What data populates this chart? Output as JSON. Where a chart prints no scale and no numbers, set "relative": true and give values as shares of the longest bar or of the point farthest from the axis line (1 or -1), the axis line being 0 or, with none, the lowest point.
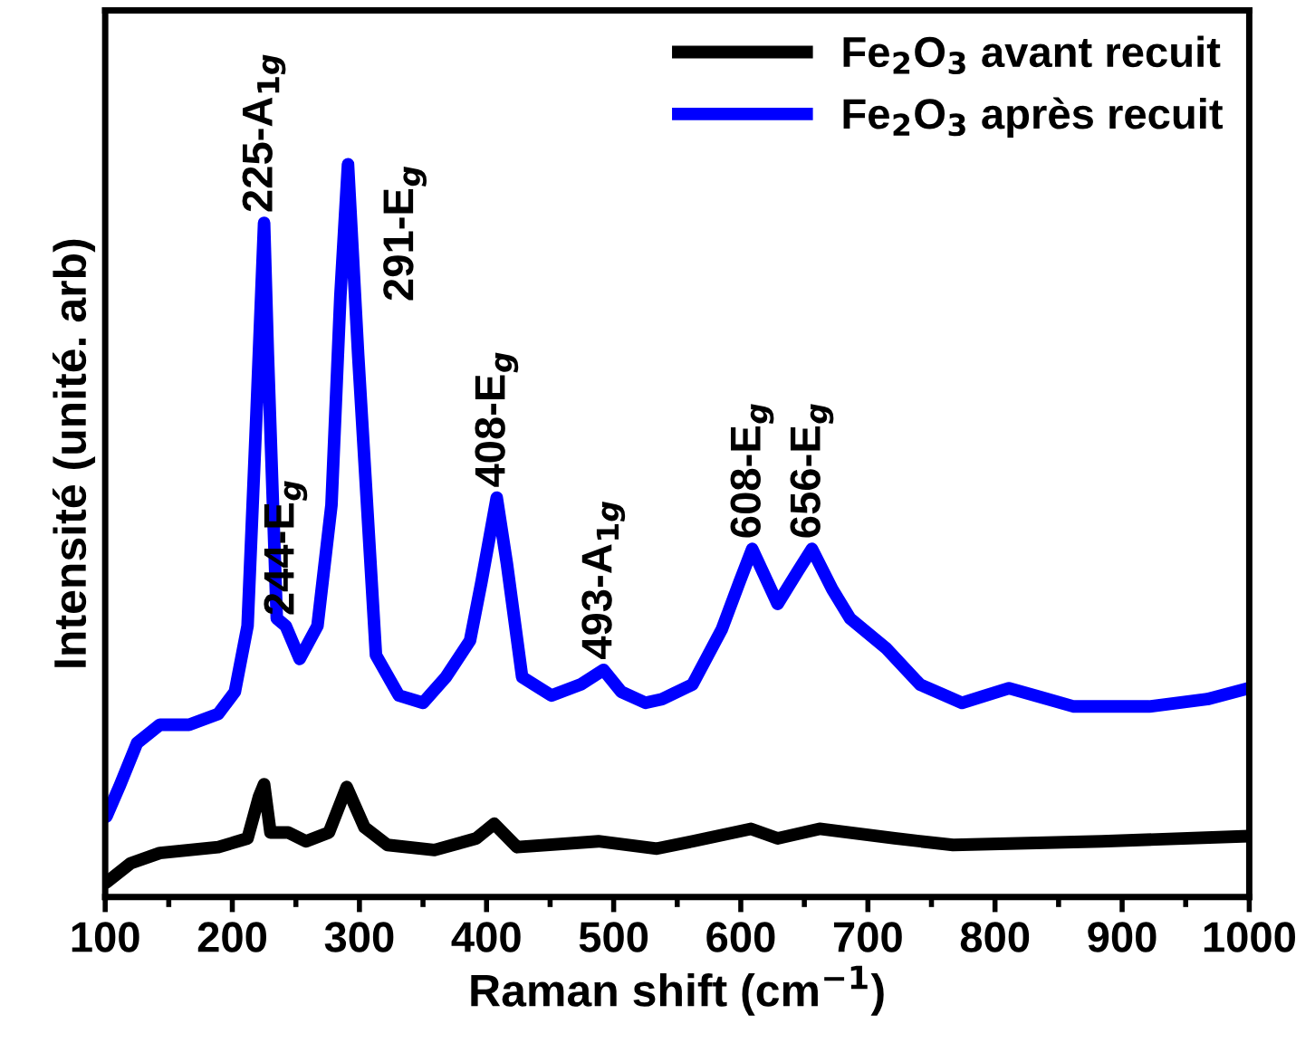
{
  "chart_data": {
    "type": "line",
    "relative": true,
    "xlabel": "Raman shift (cm$^{−1}$)",
    "ylabel": "Intensité (unité. arb)",
    "xlim": [
      100,
      1000
    ],
    "xticks": [
      100,
      200,
      300,
      400,
      500,
      600,
      700,
      800,
      900,
      1000
    ],
    "grid": false,
    "legend": "top right",
    "marker": "none",
    "line_style": "solid",
    "series": [
      {
        "name": "Fe$_{2}$O$_{3}$ avant recuit",
        "color": "#000000",
        "x": [
          101,
          120,
          143,
          189,
          212,
          221,
          225,
          230,
          244,
          258,
          276,
          290,
          304,
          322,
          359,
          392,
          406,
          424,
          488,
          534,
          562,
          608,
          629,
          662,
          721,
          767,
          884,
          1000
        ],
        "values": [
          0.02,
          0.046,
          0.06,
          0.068,
          0.08,
          0.137,
          0.154,
          0.088,
          0.088,
          0.076,
          0.088,
          0.15,
          0.095,
          0.071,
          0.064,
          0.08,
          0.1,
          0.068,
          0.076,
          0.066,
          0.076,
          0.093,
          0.08,
          0.093,
          0.08,
          0.071,
          0.076,
          0.083
        ]
      },
      {
        "name": "Fe$_{2}$O$_{3}$ après recuit",
        "color": "#0000ff",
        "x": [
          101,
          111,
          125,
          143,
          166,
          189,
          202,
          212,
          219,
          225,
          228,
          235,
          242,
          253,
          267,
          278,
          285,
          291,
          299,
          313,
          331,
          350,
          368,
          387,
          396,
          408,
          416,
          428,
          451,
          474,
          492,
          506,
          525,
          538,
          562,
          585,
          599,
          609,
          629,
          645,
          656,
          672,
          686,
          714,
          741,
          774,
          811,
          862,
          921,
          967,
          1000
        ],
        "values": [
          0.11,
          0.15,
          0.21,
          0.235,
          0.235,
          0.25,
          0.28,
          0.37,
          0.66,
          0.92,
          0.74,
          0.38,
          0.37,
          0.325,
          0.37,
          0.535,
          0.82,
          1.0,
          0.74,
          0.33,
          0.275,
          0.265,
          0.3,
          0.35,
          0.43,
          0.545,
          0.455,
          0.3,
          0.275,
          0.29,
          0.31,
          0.28,
          0.265,
          0.27,
          0.29,
          0.365,
          0.43,
          0.475,
          0.4,
          0.445,
          0.475,
          0.42,
          0.38,
          0.34,
          0.29,
          0.265,
          0.285,
          0.26,
          0.26,
          0.27,
          0.285
        ]
      }
    ],
    "annotations": [
      {
        "text": "225-A$_{1g}$",
        "x": 225,
        "y": 0.92
      },
      {
        "text": "244-E$_{g}$",
        "x": 242,
        "y": 0.37
      },
      {
        "text": "291-E$_{g}$",
        "x": 291,
        "y": 1.0
      },
      {
        "text": "408-E$_{g}$",
        "x": 408,
        "y": 0.545
      },
      {
        "text": "493-A$_{1g}$",
        "x": 492,
        "y": 0.31
      },
      {
        "text": "608-E$_{g}$",
        "x": 609,
        "y": 0.475
      },
      {
        "text": "656-E$_{g}$",
        "x": 656,
        "y": 0.475
      }
    ]
  }
}
